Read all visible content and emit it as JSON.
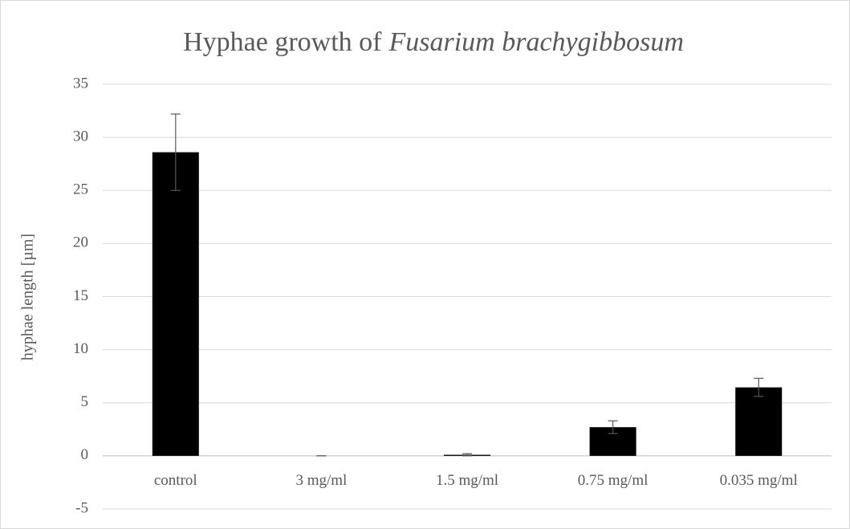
{
  "chart_data": {
    "type": "bar",
    "title": [
      "Hyphae growth of",
      "Fusarium brachygibbosum"
    ],
    "y_label": "hyphae length [µm]",
    "categories": [
      "control",
      "3 mg/ml",
      "1.5 mg/ml",
      "0.75 mg/ml",
      "0.035 mg/ml"
    ],
    "values": [
      28.6,
      0,
      0.1,
      2.7,
      6.45
    ],
    "errors": [
      3.6,
      0,
      0.1,
      0.6,
      0.85
    ],
    "color": "#000000",
    "error_color": "#595959",
    "ylim": [
      -5,
      35
    ],
    "yticks": [
      -5,
      0,
      5,
      10,
      15,
      20,
      25,
      30,
      35
    ],
    "grid": true
  }
}
